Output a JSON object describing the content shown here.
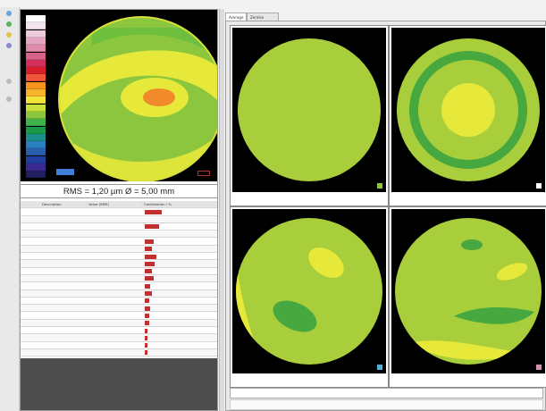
{
  "colors": {
    "map_background": "#000000",
    "map_green": "#8cc63f",
    "map_dark_green": "#46a83f",
    "map_yellow": "#e6e83a",
    "map_orange": "#f08a2a",
    "accent_blue": "#3f7fd6",
    "accent_red": "#c03030"
  },
  "toolbar_icons": [
    "home-icon",
    "zoom-icon",
    "layers-icon",
    "settings-icon",
    "print-icon",
    "info-icon"
  ],
  "scale": {
    "labels": [
      "",
      "",
      "",
      "",
      "",
      "",
      "",
      "",
      "",
      "",
      "",
      "",
      "",
      "",
      "",
      "",
      "",
      "",
      "",
      "",
      "",
      ""
    ]
  },
  "map": {
    "rms_text": "RMS = 1,20 µm  Ø = 5,00 mm"
  },
  "tabs": [
    "Average",
    "Zernike modes"
  ],
  "table": {
    "headers": [
      "",
      "Description",
      "Value (RMS)",
      "Contribution / %"
    ],
    "rows": [
      [
        "",
        "",
        "",
        ""
      ],
      [
        "",
        "",
        "",
        ""
      ],
      [
        "",
        "",
        "",
        ""
      ],
      [
        "",
        "",
        "",
        ""
      ],
      [
        "",
        "",
        "",
        ""
      ],
      [
        "",
        "",
        "",
        ""
      ],
      [
        "",
        "",
        "",
        ""
      ],
      [
        "",
        "",
        "",
        ""
      ],
      [
        "",
        "",
        "",
        ""
      ],
      [
        "",
        "",
        "",
        ""
      ],
      [
        "",
        "",
        "",
        ""
      ],
      [
        "",
        "",
        "",
        ""
      ],
      [
        "",
        "",
        "",
        ""
      ],
      [
        "",
        "",
        "",
        ""
      ],
      [
        "",
        "",
        "",
        ""
      ],
      [
        "",
        "",
        "",
        ""
      ],
      [
        "",
        "",
        "",
        ""
      ],
      [
        "",
        "",
        "",
        ""
      ],
      [
        "",
        "",
        "",
        ""
      ],
      [
        "",
        "",
        "",
        ""
      ]
    ],
    "contribution": [
      0.12,
      0,
      0.1,
      0,
      0.06,
      0.05,
      0.08,
      0.07,
      0.05,
      0.06,
      0.04,
      0.05,
      0.03,
      0.04,
      0.03,
      0.03,
      0.02,
      0.02,
      0.02,
      0.02
    ]
  },
  "modes": [
    {
      "caption": "",
      "tag": "",
      "chip_color": "#8cc63f"
    },
    {
      "caption": "",
      "tag": "",
      "chip_color": "#ffffff"
    },
    {
      "caption": "",
      "tag": "",
      "chip_color": "#4fb3d9"
    },
    {
      "caption": "",
      "tag": "",
      "chip_color": "#d98fb0"
    }
  ],
  "footer": {
    "line1": "",
    "line2": ""
  }
}
